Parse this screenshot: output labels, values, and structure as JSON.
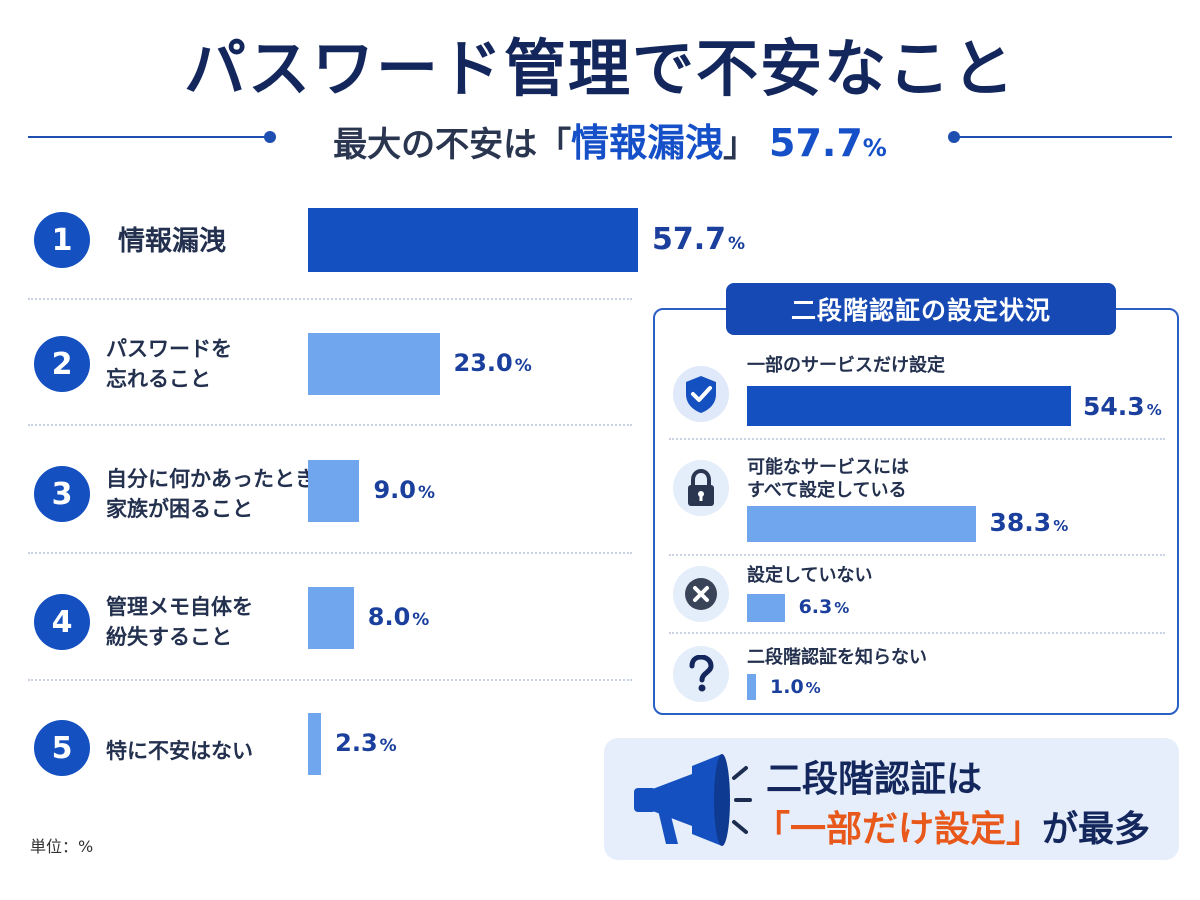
{
  "title": "パスワード管理で不安なこと",
  "subtitle": {
    "prefix": "最大の不安は「",
    "highlight": "情報漏洩",
    "suffix": "」",
    "value": "57.7",
    "pct": "%"
  },
  "unit_label": "単位：%",
  "colors": {
    "primary": "#1450c0",
    "light_bar": "#6fa6ee",
    "accent_orange": "#e8581a",
    "navy": "#13275c"
  },
  "chart_data": [
    {
      "type": "bar",
      "orientation": "horizontal",
      "title": "パスワード管理で不安なこと",
      "unit": "%",
      "ranks": [
        "1",
        "2",
        "3",
        "4",
        "5"
      ],
      "categories": [
        [
          "情報漏洩"
        ],
        [
          "パスワードを",
          "忘れること"
        ],
        [
          "自分に何かあったとき",
          "家族が困ること"
        ],
        [
          "管理メモ自体を",
          "紛失すること"
        ],
        [
          "特に不安はない"
        ]
      ],
      "values": [
        57.7,
        23.0,
        9.0,
        8.0,
        2.3
      ],
      "value_labels": [
        "57.7",
        "23.0",
        "9.0",
        "8.0",
        "2.3"
      ],
      "xlim": [
        0,
        57.7
      ]
    },
    {
      "type": "bar",
      "orientation": "horizontal",
      "title": "二段階認証の設定状況",
      "unit": "%",
      "icons": [
        "shield-check-icon",
        "lock-icon",
        "x-circle-icon",
        "question-mark-icon"
      ],
      "categories": [
        [
          "一部のサービスだけ設定"
        ],
        [
          "可能なサービスには",
          "すべて設定している"
        ],
        [
          "設定していない"
        ],
        [
          "二段階認証を知らない"
        ]
      ],
      "values": [
        54.3,
        38.3,
        6.3,
        1.0
      ],
      "value_labels": [
        "54.3",
        "38.3",
        "6.3",
        "1.0"
      ],
      "xlim": [
        0,
        54.3
      ]
    }
  ],
  "callout": {
    "icon": "megaphone-icon",
    "line1": "二段階認証は",
    "line2_open": "「",
    "line2_highlight": "一部だけ設定",
    "line2_close": "」",
    "line2_suffix": "が最多"
  }
}
